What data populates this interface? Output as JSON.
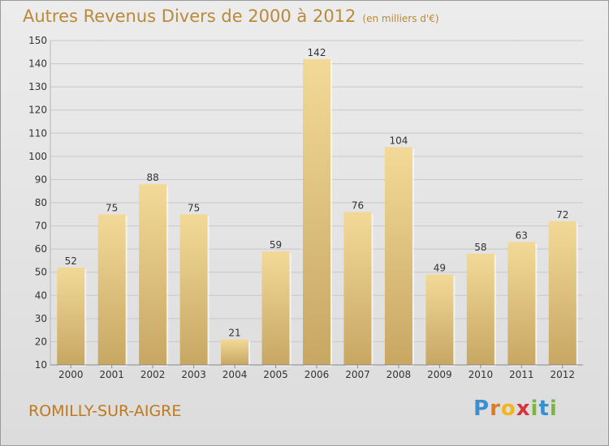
{
  "header": {
    "title": "Autres Revenus Divers de 2000 à 2012",
    "unit": "(en milliers d'€)"
  },
  "footer": {
    "town": "ROMILLY-SUR-AIGRE",
    "logo_letters": [
      {
        "ch": "P",
        "color": "#3a8fd0"
      },
      {
        "ch": "r",
        "color": "#e07a20"
      },
      {
        "ch": "o",
        "color": "#f2b51e"
      },
      {
        "ch": "x",
        "color": "#d8323a"
      },
      {
        "ch": "i",
        "color": "#7bb73c"
      },
      {
        "ch": "t",
        "color": "#3a8fd0"
      },
      {
        "ch": "i",
        "color": "#7bb73c"
      }
    ]
  },
  "colors": {
    "title": "#b98a3a",
    "town": "#c0781c",
    "bar_top": "#f3d998",
    "bar_bottom": "#c7a762",
    "grid": "#c8c8c8"
  },
  "chart_data": {
    "type": "bar",
    "categories": [
      "2000",
      "2001",
      "2002",
      "2003",
      "2004",
      "2005",
      "2006",
      "2007",
      "2008",
      "2009",
      "2010",
      "2011",
      "2012"
    ],
    "values": [
      52,
      75,
      88,
      75,
      21,
      59,
      142,
      76,
      104,
      49,
      58,
      63,
      72
    ],
    "title": "Autres Revenus Divers de 2000 à 2012",
    "subtitle": "(en milliers d'€)",
    "xlabel": "",
    "ylabel": "",
    "ylim": [
      10,
      150
    ],
    "yticks": [
      10,
      20,
      30,
      40,
      50,
      60,
      70,
      80,
      90,
      100,
      110,
      120,
      130,
      140,
      150
    ],
    "grid": true,
    "legend": "none"
  }
}
